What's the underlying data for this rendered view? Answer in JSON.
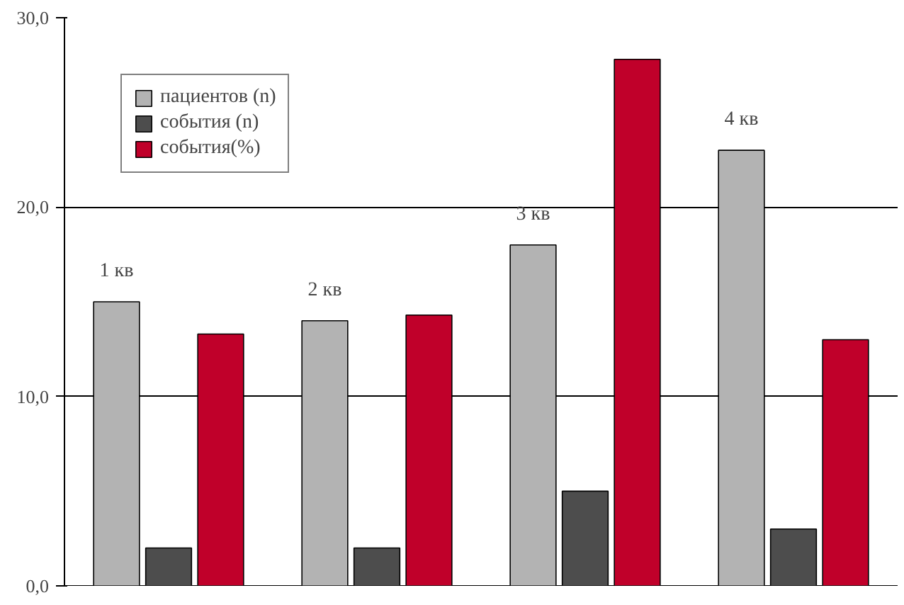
{
  "chart_data": {
    "type": "bar",
    "categories": [
      "1 кв",
      "2 кв",
      "3 кв",
      "4 кв"
    ],
    "series": [
      {
        "name": "пациентов (n)",
        "color": "#b3b3b3",
        "values": [
          15,
          14,
          18,
          23
        ]
      },
      {
        "name": "события (n)",
        "color": "#4d4d4d",
        "values": [
          2,
          2,
          5,
          3
        ]
      },
      {
        "name": "события(%)",
        "color": "#c0002a",
        "values": [
          13.3,
          14.3,
          27.8,
          13.0
        ]
      }
    ],
    "ylim": [
      0,
      30
    ],
    "yticks": [
      {
        "value": 0,
        "label": "0,0"
      },
      {
        "value": 10,
        "label": "10,0"
      },
      {
        "value": 20,
        "label": "20,0"
      },
      {
        "value": 30,
        "label": "30,0"
      }
    ],
    "grid": "y",
    "legend": "top left"
  }
}
